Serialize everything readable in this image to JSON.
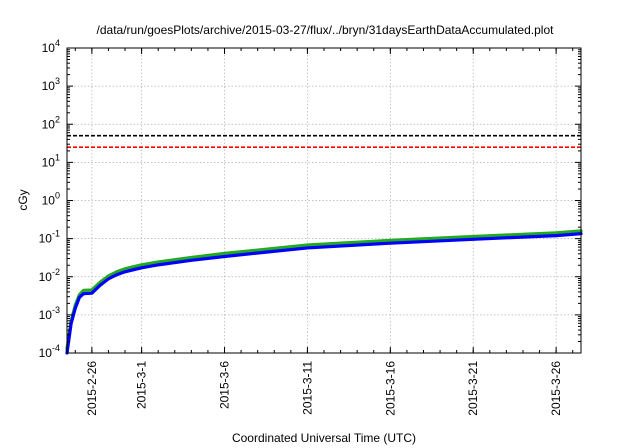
{
  "chart_data": {
    "type": "line",
    "title": "/data/run/goesPlots/archive/2015-03-27/flux/../bryn/31daysEarthDataAccumulated.plot",
    "xlabel": "Coordinated Universal Time (UTC)",
    "ylabel": "cGy",
    "yscale": "log",
    "ylim": [
      0.0001,
      10000
    ],
    "xlim": [
      "2015-02-24T12:00",
      "2015-03-27T12:00"
    ],
    "x_ticks": [
      "2015-2-26",
      "2015-3-1",
      "2015-3-6",
      "2015-3-11",
      "2015-3-16",
      "2015-3-21",
      "2015-3-26"
    ],
    "y_ticks": [
      {
        "value": 0.0001,
        "mantissa": "10",
        "exp": "-4"
      },
      {
        "value": 0.001,
        "mantissa": "10",
        "exp": "-3"
      },
      {
        "value": 0.01,
        "mantissa": "10",
        "exp": "-2"
      },
      {
        "value": 0.1,
        "mantissa": "10",
        "exp": "-1"
      },
      {
        "value": 1,
        "mantissa": "10",
        "exp": "0"
      },
      {
        "value": 10,
        "mantissa": "10",
        "exp": "1"
      },
      {
        "value": 100,
        "mantissa": "10",
        "exp": "2"
      },
      {
        "value": 1000,
        "mantissa": "10",
        "exp": "3"
      },
      {
        "value": 10000,
        "mantissa": "10",
        "exp": "4"
      }
    ],
    "grid": true,
    "reference_lines": [
      {
        "value": 50,
        "color": "#000000",
        "style": "dashed"
      },
      {
        "value": 25,
        "color": "#ff0000",
        "style": "dashed"
      }
    ],
    "series": [
      {
        "color": "#22aa22",
        "x": [
          "2015-02-24T12:00",
          "2015-02-24T18:00",
          "2015-02-25T00:00",
          "2015-02-25T06:00",
          "2015-02-25T12:00",
          "2015-02-26T00:00",
          "2015-02-26T12:00",
          "2015-02-27T00:00",
          "2015-02-27T12:00",
          "2015-02-28T00:00",
          "2015-03-01T00:00",
          "2015-03-02T00:00",
          "2015-03-04T00:00",
          "2015-03-06T00:00",
          "2015-03-08T00:00",
          "2015-03-11T00:00",
          "2015-03-16T00:00",
          "2015-03-21T00:00",
          "2015-03-26T00:00",
          "2015-03-27T12:00"
        ],
        "values": [
          0.00013,
          0.0007,
          0.0018,
          0.0034,
          0.0044,
          0.0045,
          0.0072,
          0.0105,
          0.0135,
          0.0162,
          0.0205,
          0.0245,
          0.032,
          0.041,
          0.05,
          0.068,
          0.09,
          0.114,
          0.142,
          0.16
        ]
      },
      {
        "color": "#0000ff",
        "x": [
          "2015-02-24T12:00",
          "2015-02-24T18:00",
          "2015-02-25T00:00",
          "2015-02-25T06:00",
          "2015-02-25T12:00",
          "2015-02-26T00:00",
          "2015-02-26T12:00",
          "2015-02-27T00:00",
          "2015-02-27T12:00",
          "2015-02-28T00:00",
          "2015-03-01T00:00",
          "2015-03-02T00:00",
          "2015-03-04T00:00",
          "2015-03-06T00:00",
          "2015-03-08T00:00",
          "2015-03-11T00:00",
          "2015-03-16T00:00",
          "2015-03-21T00:00",
          "2015-03-26T00:00",
          "2015-03-27T12:00"
        ],
        "values": [
          0.0001,
          0.0006,
          0.0015,
          0.0029,
          0.0036,
          0.0037,
          0.006,
          0.0088,
          0.0113,
          0.0135,
          0.0172,
          0.0205,
          0.027,
          0.034,
          0.042,
          0.057,
          0.076,
          0.096,
          0.12,
          0.135
        ]
      }
    ]
  }
}
